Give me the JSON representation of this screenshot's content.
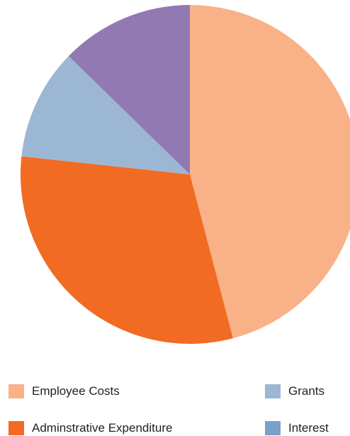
{
  "chart_data": {
    "type": "pie",
    "title": "",
    "slices": [
      {
        "label": "Employee Costs",
        "value": 45.9,
        "color": "#F9B187"
      },
      {
        "label": "Adminstrative Expenditure",
        "value": 30.8,
        "color": "#F26B23"
      },
      {
        "label": "Grants",
        "value": 10.6,
        "color": "#9BB7D4"
      },
      {
        "label": "Interest",
        "value": 0.0,
        "color": "#79A1C9"
      },
      {
        "label": "",
        "value": 12.7,
        "color": "#9379B1"
      }
    ],
    "start_angle_deg": 0,
    "direction": "clockwise",
    "legend": {
      "placement": "bottom",
      "entries": [
        {
          "label": "Employee Costs",
          "color": "#F9B187"
        },
        {
          "label": "Grants",
          "color": "#9BB7D4"
        },
        {
          "label": "Adminstrative Expenditure",
          "color": "#F26B23"
        },
        {
          "label": "Interest",
          "color": "#79A1C9"
        }
      ]
    }
  }
}
